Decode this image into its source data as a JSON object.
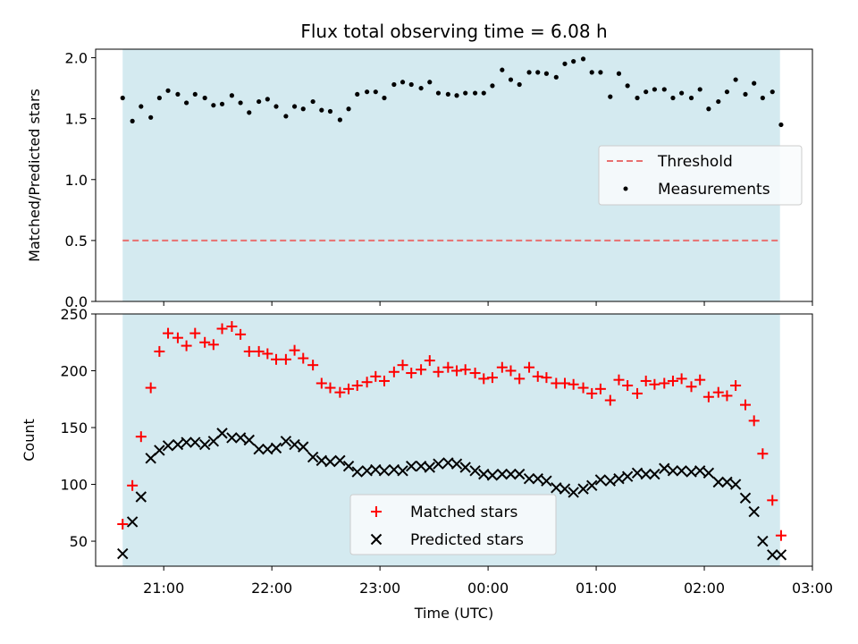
{
  "chart_data": [
    {
      "type": "scatter",
      "title": "Flux total observing time = 6.08 h",
      "xlabel": "",
      "ylabel": "Matched/Predicted stars",
      "ylim": [
        0,
        2.07
      ],
      "yticks": [
        0.0,
        0.5,
        1.0,
        1.5,
        2.0
      ],
      "ytick_labels": [
        "0.0",
        "0.5",
        "1.0",
        "1.5",
        "2.0"
      ],
      "xlim": [
        20.37,
        27.0
      ],
      "shaded_span": [
        20.62,
        26.7
      ],
      "shade_color": "#d4eaf0",
      "legend_position": "center-right",
      "legend": [
        "Threshold",
        "Measurements"
      ],
      "threshold": {
        "name": "Threshold",
        "y": 0.5,
        "color": "#e87070",
        "style": "dashed"
      },
      "series": [
        {
          "name": "Measurements",
          "color": "#000000",
          "marker": "dot",
          "x": [
            20.62,
            20.71,
            20.79,
            20.88,
            20.96,
            21.04,
            21.13,
            21.21,
            21.29,
            21.38,
            21.46,
            21.54,
            21.63,
            21.71,
            21.79,
            21.88,
            21.96,
            22.04,
            22.13,
            22.21,
            22.29,
            22.38,
            22.46,
            22.54,
            22.63,
            22.71,
            22.79,
            22.88,
            22.96,
            23.04,
            23.13,
            23.21,
            23.29,
            23.38,
            23.46,
            23.54,
            23.63,
            23.71,
            23.79,
            23.88,
            23.96,
            24.04,
            24.13,
            24.21,
            24.29,
            24.38,
            24.46,
            24.54,
            24.63,
            24.71,
            24.79,
            24.88,
            24.96,
            25.04,
            25.13,
            25.21,
            25.29,
            25.38,
            25.46,
            25.54,
            25.63,
            25.71,
            25.79,
            25.88,
            25.96,
            26.04,
            26.13,
            26.21,
            26.29,
            26.38,
            26.46,
            26.54,
            26.63,
            26.71
          ],
          "y": [
            1.67,
            1.48,
            1.6,
            1.51,
            1.67,
            1.73,
            1.7,
            1.63,
            1.7,
            1.67,
            1.61,
            1.62,
            1.69,
            1.63,
            1.55,
            1.64,
            1.66,
            1.6,
            1.52,
            1.6,
            1.58,
            1.64,
            1.57,
            1.56,
            1.49,
            1.58,
            1.7,
            1.72,
            1.72,
            1.67,
            1.78,
            1.8,
            1.78,
            1.75,
            1.8,
            1.71,
            1.7,
            1.69,
            1.71,
            1.71,
            1.71,
            1.77,
            1.9,
            1.82,
            1.78,
            1.88,
            1.88,
            1.87,
            1.84,
            1.95,
            1.97,
            1.99,
            1.88,
            1.88,
            1.68,
            1.87,
            1.77,
            1.67,
            1.72,
            1.74,
            1.74,
            1.67,
            1.71,
            1.67,
            1.74,
            1.58,
            1.64,
            1.72,
            1.82,
            1.7,
            1.79,
            1.67,
            1.72,
            1.45
          ]
        }
      ]
    },
    {
      "type": "scatter",
      "title": "",
      "xlabel": "Time (UTC)",
      "ylabel": "Count",
      "ylim": [
        28,
        250
      ],
      "yticks": [
        50,
        100,
        150,
        200,
        250
      ],
      "ytick_labels": [
        "50",
        "100",
        "150",
        "200",
        "250"
      ],
      "xlim": [
        20.37,
        27.0
      ],
      "xticks": [
        21,
        22,
        23,
        24,
        25,
        26,
        27
      ],
      "xtick_labels": [
        "21:00",
        "22:00",
        "23:00",
        "00:00",
        "01:00",
        "02:00",
        "03:00"
      ],
      "shaded_span": [
        20.62,
        26.7
      ],
      "shade_color": "#d4eaf0",
      "legend_position": "lower-center",
      "legend": [
        "Matched stars",
        "Predicted stars"
      ],
      "x": [
        20.62,
        20.71,
        20.79,
        20.88,
        20.96,
        21.04,
        21.13,
        21.21,
        21.29,
        21.38,
        21.46,
        21.54,
        21.63,
        21.71,
        21.79,
        21.88,
        21.96,
        22.04,
        22.13,
        22.21,
        22.29,
        22.38,
        22.46,
        22.54,
        22.63,
        22.71,
        22.79,
        22.88,
        22.96,
        23.04,
        23.13,
        23.21,
        23.29,
        23.38,
        23.46,
        23.54,
        23.63,
        23.71,
        23.79,
        23.88,
        23.96,
        24.04,
        24.13,
        24.21,
        24.29,
        24.38,
        24.46,
        24.54,
        24.63,
        24.71,
        24.79,
        24.88,
        24.96,
        25.04,
        25.13,
        25.21,
        25.29,
        25.38,
        25.46,
        25.54,
        25.63,
        25.71,
        25.79,
        25.88,
        25.96,
        26.04,
        26.13,
        26.21,
        26.29,
        26.38,
        26.46,
        26.54,
        26.63,
        26.71
      ],
      "series": [
        {
          "name": "Matched stars",
          "color": "#ff0000",
          "marker": "plus",
          "values": [
            65,
            99,
            142,
            185,
            217,
            233,
            229,
            222,
            233,
            225,
            223,
            237,
            239,
            232,
            217,
            217,
            215,
            210,
            210,
            218,
            211,
            205,
            189,
            185,
            181,
            184,
            187,
            190,
            195,
            191,
            199,
            205,
            198,
            201,
            209,
            199,
            203,
            200,
            201,
            198,
            193,
            194,
            203,
            200,
            193,
            203,
            195,
            194,
            189,
            189,
            188,
            185,
            180,
            184,
            174,
            192,
            187,
            180,
            191,
            188,
            189,
            191,
            193,
            186,
            192,
            177,
            181,
            178,
            187,
            170,
            156,
            127,
            86,
            55
          ]
        },
        {
          "name": "Predicted stars",
          "color": "#000000",
          "marker": "x",
          "values": [
            39,
            67,
            89,
            123,
            130,
            134,
            135,
            137,
            137,
            135,
            138,
            145,
            141,
            141,
            139,
            131,
            131,
            132,
            138,
            135,
            133,
            124,
            121,
            120,
            121,
            116,
            111,
            112,
            113,
            112,
            113,
            112,
            116,
            116,
            115,
            118,
            119,
            118,
            115,
            112,
            109,
            108,
            109,
            109,
            109,
            105,
            105,
            103,
            97,
            96,
            93,
            96,
            99,
            104,
            103,
            105,
            107,
            110,
            109,
            109,
            114,
            112,
            112,
            111,
            112,
            110,
            102,
            102,
            100,
            88,
            76,
            50,
            38,
            38
          ]
        }
      ]
    }
  ]
}
